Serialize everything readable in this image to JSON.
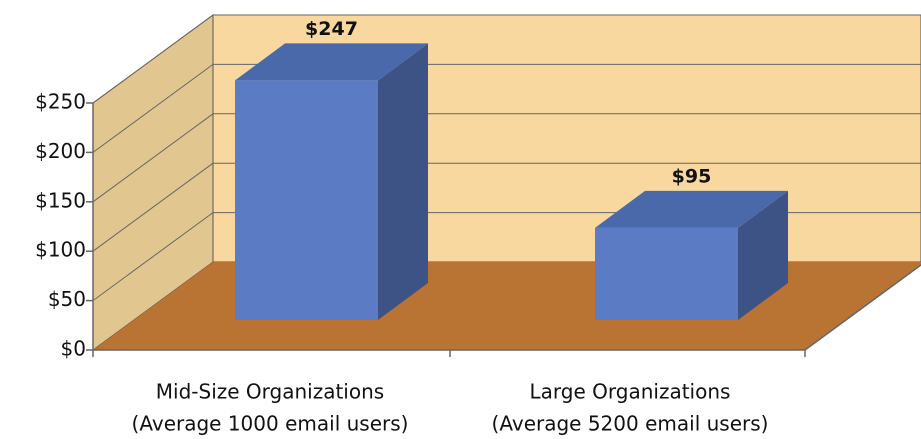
{
  "chart_data": {
    "type": "bar",
    "categories": [
      [
        "Mid-Size Organizations",
        "(Average 1000 email users)"
      ],
      [
        "Large Organizations",
        "(Average 5200 email users)"
      ]
    ],
    "values": [
      247,
      95
    ],
    "value_labels": [
      "$247",
      "$95"
    ],
    "color": "#5b7cc4",
    "ylim": [
      0,
      250
    ],
    "yticks": [
      {
        "value": 0,
        "label": "$0"
      },
      {
        "value": 50,
        "label": "$50"
      },
      {
        "value": 100,
        "label": "$100"
      },
      {
        "value": 150,
        "label": "$150"
      },
      {
        "value": 200,
        "label": "$200"
      },
      {
        "value": 250,
        "label": "$250"
      }
    ],
    "grid": true
  }
}
